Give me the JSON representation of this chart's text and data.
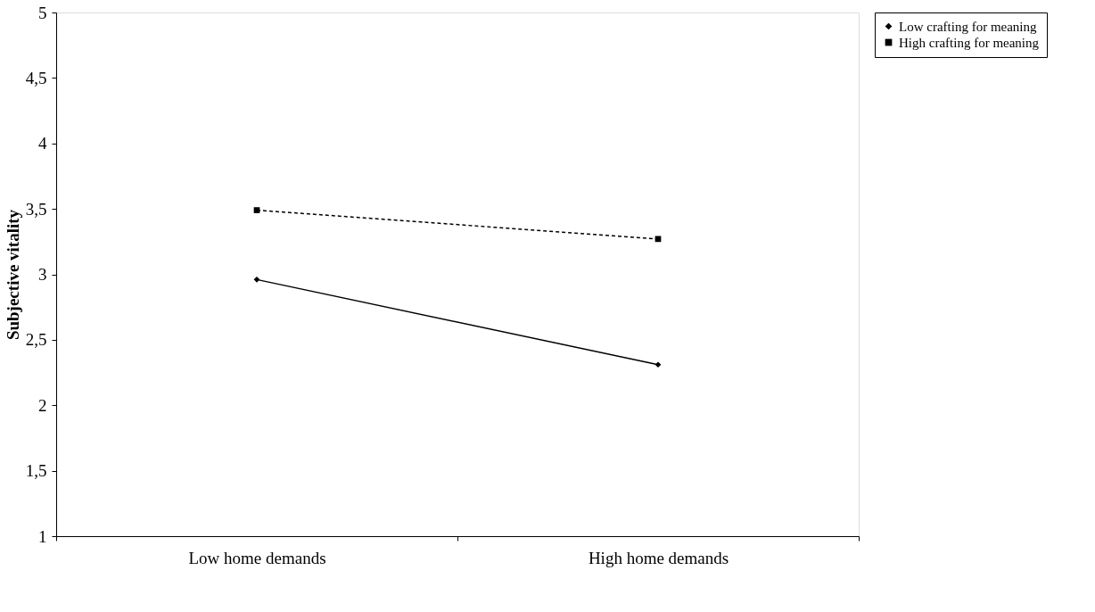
{
  "chart_data": {
    "type": "line",
    "ylabel": "Subjective vitality",
    "categories": [
      "Low home demands",
      "High home demands"
    ],
    "series": [
      {
        "name": "Low crafting for meaning",
        "color": "#000000",
        "values": [
          2.96,
          2.31
        ],
        "marker": "diamond",
        "line_style": "solid"
      },
      {
        "name": "High crafting for meaning",
        "color": "#000000",
        "values": [
          3.49,
          3.27
        ],
        "marker": "square",
        "line_style": "dashed"
      }
    ],
    "ylim": [
      1,
      5
    ],
    "yticks": [
      1,
      {
        "value": 1.5,
        "label": "1,5"
      },
      2,
      {
        "value": 2.5,
        "label": "2,5"
      },
      3,
      {
        "value": 3.5,
        "label": "3,5"
      },
      4,
      {
        "value": 4.5,
        "label": "4,5"
      },
      5
    ],
    "grid": false,
    "legend": "right"
  }
}
